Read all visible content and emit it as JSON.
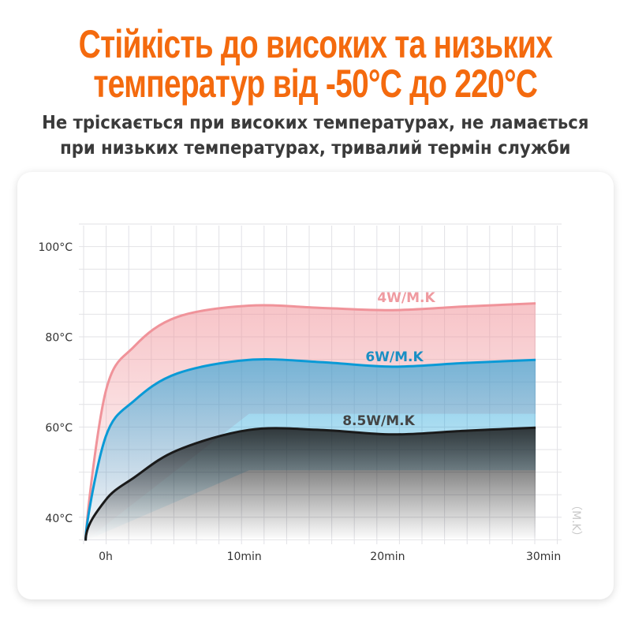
{
  "header": {
    "title_line1": "Стійкість до високих та низьких",
    "title_line2": "температур від -50°C до 220°C",
    "subtitle_line1": "Не тріскається при високих температурах, не ламається",
    "subtitle_line2": "при низьких температурах, тривалий термін служби"
  },
  "chart_data": {
    "type": "area",
    "title": "",
    "xlabel": "",
    "ylabel": "",
    "side_label": "（M.K）",
    "x_ticks": [
      {
        "value": 0,
        "label": "0h"
      },
      {
        "value": 10,
        "label": "10min"
      },
      {
        "value": 20,
        "label": "20min"
      },
      {
        "value": 30,
        "label": "30min"
      }
    ],
    "y_ticks": [
      {
        "value": 100,
        "label": "100°C"
      },
      {
        "value": 80,
        "label": "80°C"
      },
      {
        "value": 60,
        "label": "60°C"
      },
      {
        "value": 40,
        "label": "40°C"
      }
    ],
    "xlim": [
      -1.5,
      30
    ],
    "ylim": [
      35,
      100
    ],
    "grid": true,
    "legend": "inline labels",
    "series": [
      {
        "name": "4W/M.K",
        "color": "#f0939a",
        "label_color": "#ef9aa0",
        "x": [
          -1.4,
          0,
          2,
          5,
          10,
          15,
          20,
          25,
          30
        ],
        "y": [
          35,
          68,
          78,
          84.5,
          87,
          86.5,
          86,
          86.8,
          87.5
        ]
      },
      {
        "name": "6W/M.K",
        "color": "#0a9ad6",
        "label_color": "#1a8fc4",
        "x": [
          -1.4,
          0,
          2,
          5,
          10,
          15,
          20,
          25,
          30
        ],
        "y": [
          35,
          58,
          66,
          72,
          75,
          74.5,
          73.5,
          74.3,
          75
        ]
      },
      {
        "name": "8.5W/M.K",
        "color": "#1a1a1a",
        "label_color": "#444444",
        "x": [
          -1.4,
          0,
          2,
          5,
          10,
          15,
          20,
          25,
          30
        ],
        "y": [
          35,
          44,
          49,
          55,
          59.5,
          59.5,
          58.5,
          59.3,
          60
        ]
      }
    ]
  }
}
